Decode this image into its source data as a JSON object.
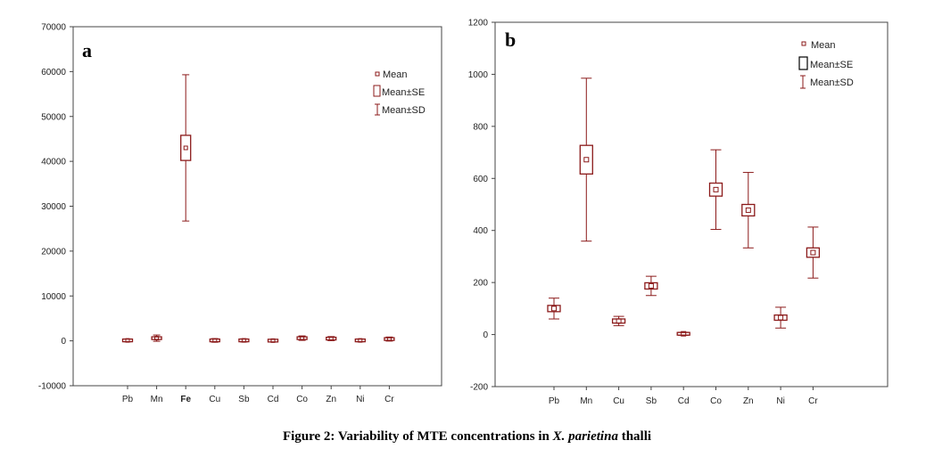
{
  "caption": {
    "prefix": "Figure 2: Variability of MTE concentrations in ",
    "species": "X. parietina",
    "suffix": " thalli"
  },
  "colors": {
    "box": "#8b1a1a",
    "highlight_label": "#e8242a",
    "axis": "#333333"
  },
  "chart_data": [
    {
      "type": "box",
      "panel_label": "a",
      "categories": [
        "Pb",
        "Mn",
        "Fe",
        "Cu",
        "Sb",
        "Cd",
        "Co",
        "Zn",
        "Ni",
        "Cr"
      ],
      "highlight_category": "Fe",
      "ylim": [
        -10000,
        70000
      ],
      "yticks": [
        -10000,
        0,
        10000,
        20000,
        30000,
        40000,
        50000,
        60000,
        70000
      ],
      "ytick_labels": [
        "-10000",
        "0",
        "10000",
        "20000",
        "30000",
        "40000",
        "50000",
        "60000",
        "70000"
      ],
      "mean": [
        100,
        600,
        43000,
        100,
        100,
        50,
        600,
        500,
        100,
        400
      ],
      "se": [
        150,
        250,
        2800,
        150,
        150,
        100,
        150,
        150,
        100,
        150
      ],
      "sd": [
        300,
        700,
        16300,
        400,
        350,
        200,
        500,
        450,
        300,
        450
      ],
      "legend": {
        "mean": "Mean",
        "se": "Mean±SE",
        "sd": "Mean±SD",
        "position": "top-right"
      }
    },
    {
      "type": "box",
      "panel_label": "b",
      "categories": [
        "Pb",
        "Mn",
        "Cu",
        "Sb",
        "Cd",
        "Co",
        "Zn",
        "Ni",
        "Cr"
      ],
      "ylim": [
        -200,
        1200
      ],
      "yticks": [
        -200,
        0,
        200,
        400,
        600,
        800,
        1000,
        1200
      ],
      "ytick_labels": [
        "-200",
        "0",
        "200",
        "400",
        "600",
        "800",
        "1000",
        "1200"
      ],
      "mean": [
        100,
        672,
        52,
        187,
        3,
        557,
        478,
        65,
        315
      ],
      "se": [
        12,
        55,
        8,
        12,
        3,
        25,
        22,
        10,
        18
      ],
      "sd": [
        40,
        313,
        18,
        37,
        6,
        153,
        145,
        40,
        98
      ],
      "legend": {
        "mean": "Mean",
        "se": "Mean±SE",
        "sd": "Mean±SD",
        "position": "top-right"
      }
    }
  ]
}
